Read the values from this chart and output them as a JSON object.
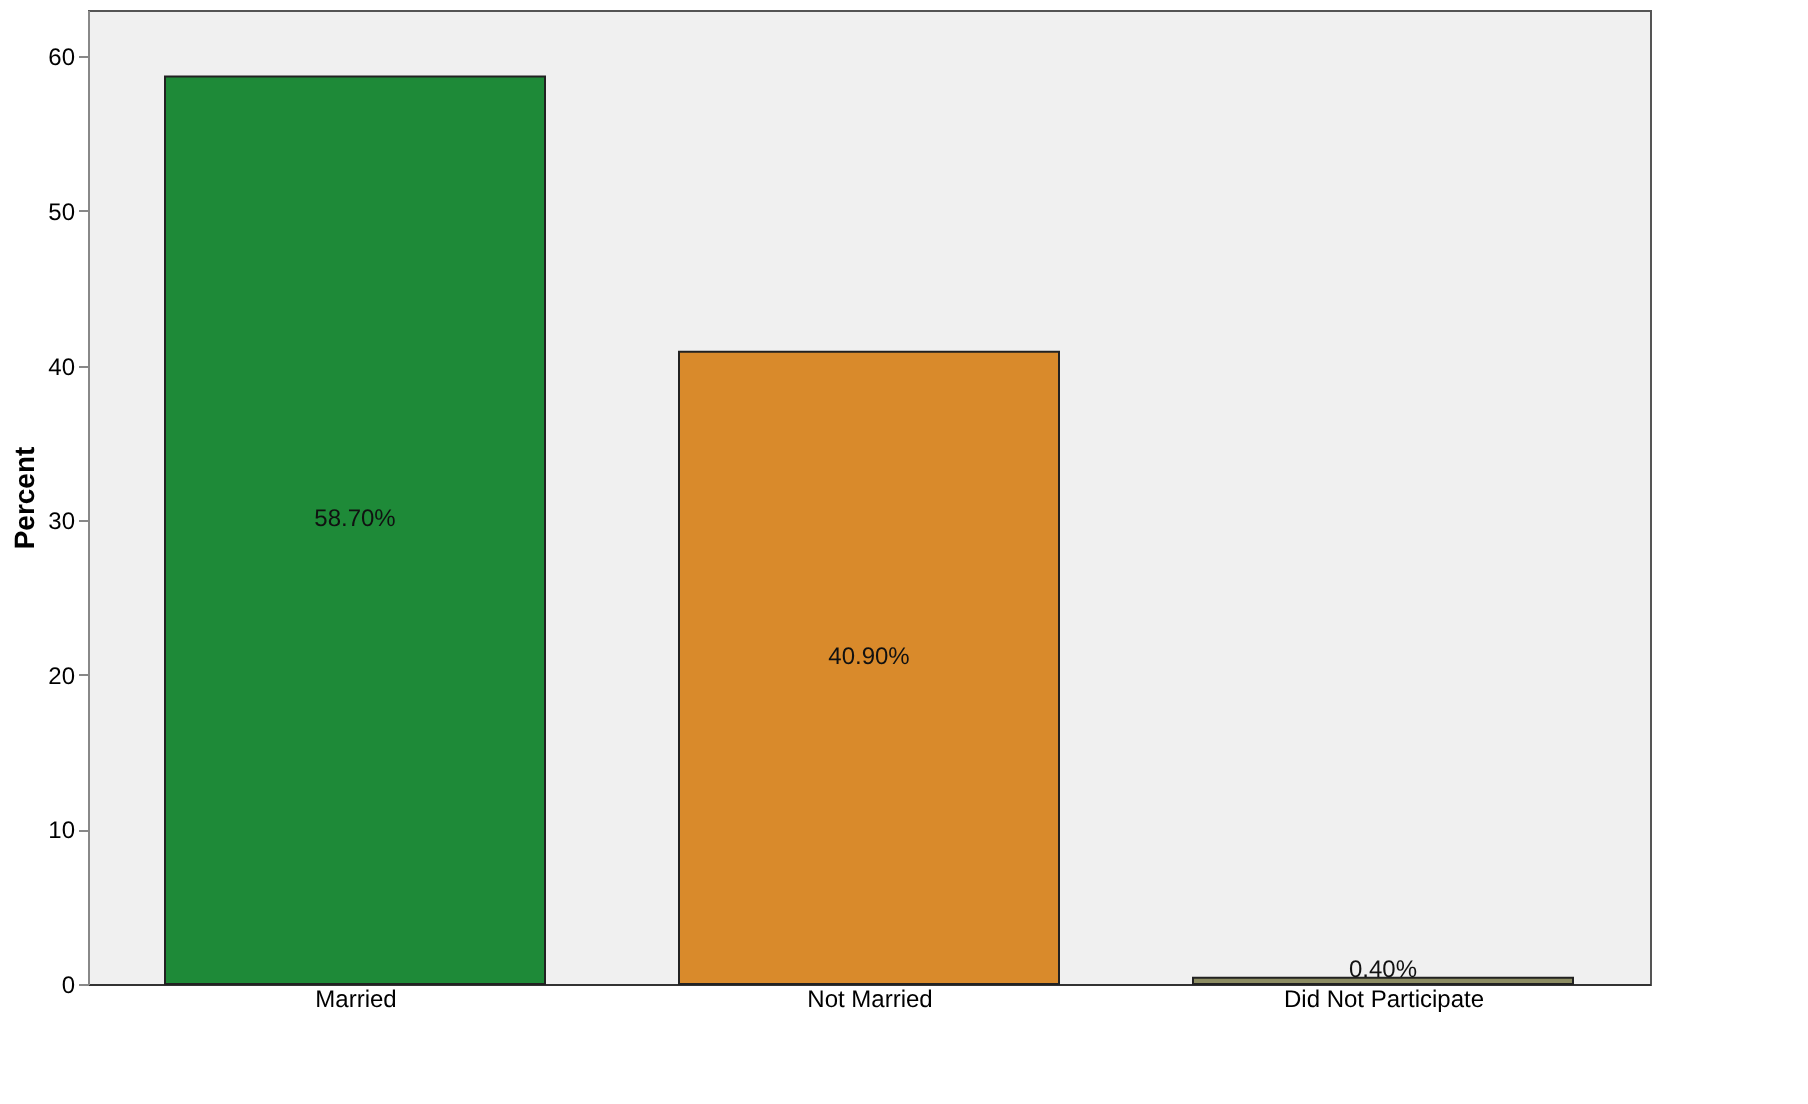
{
  "chart_data": {
    "type": "bar",
    "ylabel": "Percent",
    "categories": [
      "Married",
      "Not Married",
      "Did Not Participate"
    ],
    "values": [
      58.7,
      40.9,
      0.4
    ],
    "colors": [
      "#1e8a38",
      "#d98a2b",
      "#8c8c62"
    ],
    "value_labels": [
      "58.70%",
      "40.90%",
      "0.40%"
    ],
    "ylim": [
      0,
      63
    ],
    "yticks": [
      0,
      10,
      20,
      30,
      40,
      50,
      60
    ],
    "grid": false
  }
}
